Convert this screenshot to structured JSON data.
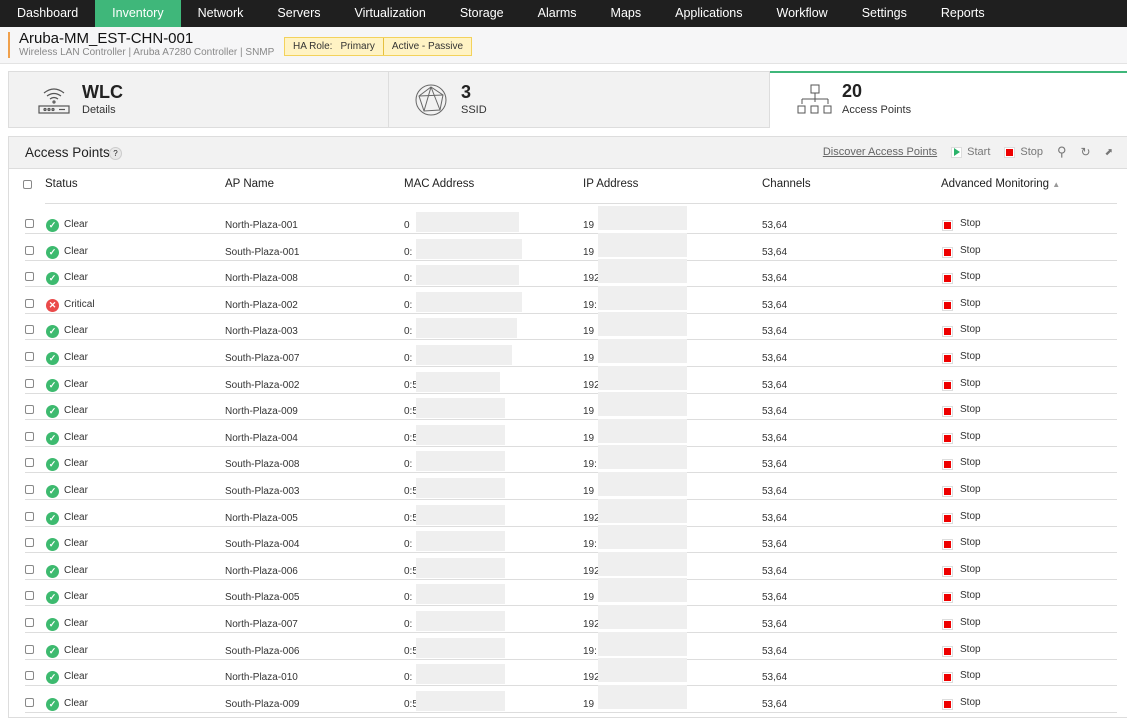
{
  "nav": [
    "Dashboard",
    "Inventory",
    "Network",
    "Servers",
    "Virtualization",
    "Storage",
    "Alarms",
    "Maps",
    "Applications",
    "Workflow",
    "Settings",
    "Reports"
  ],
  "nav_active": "Inventory",
  "device": {
    "title": "Aruba-MM_EST-CHN-001",
    "subtitle": "Wireless LAN Controller | Aruba A7280 Controller  | SNMP",
    "ha_label": "HA Role:",
    "ha_role": "Primary",
    "ha_mode": "Active - Passive"
  },
  "cards": [
    {
      "value": "WLC",
      "label": "Details",
      "icon": "wifi-router-icon"
    },
    {
      "value": "3",
      "label": "SSID",
      "icon": "globe-network-icon"
    },
    {
      "value": "20",
      "label": "Access Points",
      "icon": "hierarchy-icon"
    }
  ],
  "panel": {
    "title": "Access Points",
    "help": "?",
    "discover": "Discover Access Points",
    "start": "Start",
    "stop": "Stop"
  },
  "columns": [
    "Status",
    "AP Name",
    "MAC Address",
    "IP Address",
    "Channels",
    "Advanced Monitoring"
  ],
  "colors": {
    "clear": "#3dba6f",
    "critical": "#ea4a4a",
    "accent": "#3fb77a"
  },
  "rows": [
    {
      "status": "Clear",
      "name": "North-Plaza-001",
      "mac": "0",
      "ip": "19",
      "channels": "53,64",
      "adv": "Stop"
    },
    {
      "status": "Clear",
      "name": "South-Plaza-001",
      "mac": "0:",
      "ip": "19",
      "channels": "53,64",
      "adv": "Stop"
    },
    {
      "status": "Clear",
      "name": "North-Plaza-008",
      "mac": "0:",
      "ip": "192",
      "channels": "53,64",
      "adv": "Stop"
    },
    {
      "status": "Critical",
      "name": "North-Plaza-002",
      "mac": "0:",
      "ip": "19:",
      "channels": "53,64",
      "adv": "Stop"
    },
    {
      "status": "Clear",
      "name": "North-Plaza-003",
      "mac": "0:",
      "ip": "19",
      "channels": "53,64",
      "adv": "Stop"
    },
    {
      "status": "Clear",
      "name": "South-Plaza-007",
      "mac": "0:",
      "ip": "19",
      "channels": "53,64",
      "adv": "Stop"
    },
    {
      "status": "Clear",
      "name": "South-Plaza-002",
      "mac": "0:5",
      "ip": "192",
      "channels": "53,64",
      "adv": "Stop"
    },
    {
      "status": "Clear",
      "name": "North-Plaza-009",
      "mac": "0:5",
      "ip": "19",
      "channels": "53,64",
      "adv": "Stop"
    },
    {
      "status": "Clear",
      "name": "North-Plaza-004",
      "mac": "0:5",
      "ip": "19",
      "channels": "53,64",
      "adv": "Stop"
    },
    {
      "status": "Clear",
      "name": "South-Plaza-008",
      "mac": "0:",
      "ip": "19:",
      "channels": "53,64",
      "adv": "Stop"
    },
    {
      "status": "Clear",
      "name": "South-Plaza-003",
      "mac": "0:5",
      "ip": "19",
      "channels": "53,64",
      "adv": "Stop"
    },
    {
      "status": "Clear",
      "name": "North-Plaza-005",
      "mac": "0:5",
      "ip": "192",
      "channels": "53,64",
      "adv": "Stop"
    },
    {
      "status": "Clear",
      "name": "South-Plaza-004",
      "mac": "0:",
      "ip": "19:",
      "channels": "53,64",
      "adv": "Stop"
    },
    {
      "status": "Clear",
      "name": "North-Plaza-006",
      "mac": "0:5",
      "ip": "192.",
      "channels": "53,64",
      "adv": "Stop"
    },
    {
      "status": "Clear",
      "name": "South-Plaza-005",
      "mac": "0:",
      "ip": "19",
      "channels": "53,64",
      "adv": "Stop"
    },
    {
      "status": "Clear",
      "name": "North-Plaza-007",
      "mac": "0:",
      "ip": "192",
      "channels": "53,64",
      "adv": "Stop"
    },
    {
      "status": "Clear",
      "name": "South-Plaza-006",
      "mac": "0:5",
      "ip": "19:",
      "channels": "53,64",
      "adv": "Stop"
    },
    {
      "status": "Clear",
      "name": "North-Plaza-010",
      "mac": "0:",
      "ip": "192",
      "channels": "53,64",
      "adv": "Stop"
    },
    {
      "status": "Clear",
      "name": "South-Plaza-009",
      "mac": "0:5",
      "ip": "19",
      "channels": "53,64",
      "adv": "Stop"
    }
  ]
}
